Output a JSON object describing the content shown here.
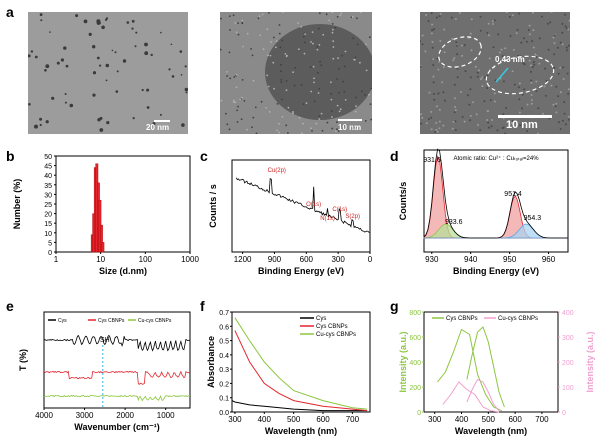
{
  "panel_labels": {
    "a": "a",
    "b": "b",
    "c": "c",
    "d": "d",
    "e": "e",
    "f": "f",
    "g": "g"
  },
  "tem": {
    "scale_1": "20 nm",
    "scale_2": "10 nm",
    "scale_3": "10 nm",
    "lattice": "0.43 nm"
  },
  "colors": {
    "red": "#e3262e",
    "green": "#8cc63f",
    "pink": "#f0a0d0",
    "blue": "#5fa8e0",
    "black": "#000000"
  },
  "chart_data": [
    {
      "id": "b",
      "type": "bar",
      "xlabel": "Size (d.nm)",
      "ylabel": "Number (%)",
      "xscale": "log",
      "xlim": [
        1,
        1000
      ],
      "ylim": [
        0,
        50
      ],
      "xticks": [
        "1",
        "10",
        "100",
        "1000"
      ],
      "yticks": [
        "0",
        "5",
        "10",
        "15",
        "20",
        "25",
        "30",
        "35",
        "40",
        "45",
        "50"
      ],
      "bars_x": [
        6.5,
        7.0,
        7.6,
        8.2,
        8.9,
        9.6,
        10.4,
        11.2
      ],
      "bars_y": [
        9,
        20,
        44,
        46,
        36,
        27,
        14,
        5
      ]
    },
    {
      "id": "c",
      "type": "line",
      "xlabel": "Binding Energy (eV)",
      "ylabel": "Counts / s",
      "xlim": [
        1300,
        0
      ],
      "xticks": [
        "1200",
        "900",
        "600",
        "300",
        "0"
      ],
      "annotations": [
        "Cu(2p)",
        "O(1s)",
        "N(1s)",
        "C(1s)",
        "S(2p)"
      ],
      "annotation_x": [
        935,
        531,
        400,
        285,
        163
      ]
    },
    {
      "id": "d",
      "type": "line",
      "xlabel": "Binding Energy (eV)",
      "ylabel": "Counts/s",
      "xlim": [
        928,
        965
      ],
      "xticks": [
        "930",
        "940",
        "950",
        "960"
      ],
      "note": "Atomic ratio:  Cu²⁺ : Cuₜₒₜₐₗ=24%",
      "peaks": [
        931.6,
        933.6,
        951.4,
        954.3
      ],
      "peak_labels": [
        "931.6",
        "933.6",
        "951.4",
        "954.3"
      ]
    },
    {
      "id": "e",
      "type": "line",
      "xlabel": "Wavenumber (cm⁻¹)",
      "ylabel": "T (%)",
      "xlim": [
        4000,
        400
      ],
      "xticks": [
        "4000",
        "3000",
        "2000",
        "1000"
      ],
      "series": [
        {
          "name": "Cys"
        },
        {
          "name": "Cys CBNPs"
        },
        {
          "name": "Cu-cys CBNPs"
        }
      ],
      "annotation": "SH",
      "annotation_x": 2550
    },
    {
      "id": "f",
      "type": "line",
      "xlabel": "Wavelength (nm)",
      "ylabel": "Absorbance",
      "xlim": [
        290,
        760
      ],
      "ylim": [
        0,
        0.7
      ],
      "xticks": [
        "300",
        "400",
        "500",
        "600",
        "700"
      ],
      "yticks": [
        "0.0",
        "0.1",
        "0.2",
        "0.3",
        "0.4",
        "0.5",
        "0.6",
        "0.7"
      ],
      "series": [
        {
          "name": "Cys",
          "x": [
            290,
            300,
            350,
            400,
            500,
            600,
            700,
            750
          ],
          "y": [
            0.08,
            0.07,
            0.05,
            0.04,
            0.02,
            0.01,
            0.01,
            0.01
          ]
        },
        {
          "name": "Cys CBNPs",
          "x": [
            300,
            350,
            400,
            450,
            500,
            600,
            700,
            750
          ],
          "y": [
            0.57,
            0.35,
            0.2,
            0.13,
            0.08,
            0.04,
            0.02,
            0.01
          ]
        },
        {
          "name": "Cu-cys CBNPs",
          "x": [
            300,
            350,
            400,
            450,
            500,
            600,
            700,
            750
          ],
          "y": [
            0.66,
            0.5,
            0.35,
            0.24,
            0.15,
            0.08,
            0.03,
            0.02
          ]
        }
      ]
    },
    {
      "id": "g",
      "type": "line",
      "xlabel": "Wavelength (nm)",
      "ylabel": "Intensity (a.u.)",
      "ylabel_right": "Intensity (a.u.)",
      "xlim": [
        260,
        760
      ],
      "ylim": [
        0,
        800
      ],
      "ylim_right": [
        0,
        400
      ],
      "xticks": [
        "300",
        "400",
        "500",
        "600",
        "700"
      ],
      "yticks": [
        "0",
        "200",
        "400",
        "600",
        "800"
      ],
      "yticks_right": [
        "0",
        "100",
        "200",
        "300",
        "400"
      ],
      "series": [
        {
          "name": "Cys CBNPs",
          "axis": "left",
          "x": [
            310,
            340,
            370,
            400,
            430,
            460,
            490,
            520,
            550
          ],
          "y": [
            240,
            320,
            480,
            660,
            620,
            300,
            140,
            40,
            10
          ]
        },
        {
          "name": "Cys CBNPs",
          "axis": "left",
          "x": [
            420,
            440,
            460,
            480,
            500,
            520,
            540,
            560
          ],
          "y": [
            260,
            460,
            640,
            680,
            560,
            360,
            160,
            40
          ]
        },
        {
          "name": "Cu-cys CBNPs",
          "axis": "right",
          "x": [
            330,
            360,
            390,
            420,
            450,
            480,
            510,
            540
          ],
          "y": [
            30,
            70,
            120,
            90,
            70,
            20,
            5,
            0
          ]
        },
        {
          "name": "Cu-cys CBNPs",
          "axis": "right",
          "x": [
            420,
            440,
            460,
            480,
            500,
            520,
            540
          ],
          "y": [
            40,
            90,
            130,
            120,
            80,
            30,
            5
          ]
        }
      ]
    }
  ]
}
